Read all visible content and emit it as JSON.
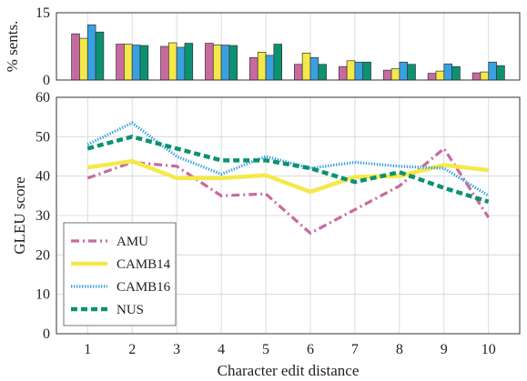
{
  "chart_data": [
    {
      "type": "bar",
      "ylabel": "% sents.",
      "ylim": [
        0,
        15
      ],
      "yticks": [
        0,
        15
      ],
      "categories": [
        "1",
        "2",
        "3",
        "4",
        "5",
        "6",
        "7",
        "8",
        "9",
        "10"
      ],
      "series": [
        {
          "name": "AMU",
          "color": "#c86aa0",
          "values": [
            10.3,
            8.0,
            7.5,
            8.2,
            5.0,
            3.5,
            3.0,
            2.2,
            1.5,
            1.6
          ]
        },
        {
          "name": "CAMB14",
          "color": "#f4e94a",
          "values": [
            9.3,
            8.0,
            8.3,
            7.8,
            6.2,
            6.0,
            4.3,
            2.5,
            2.0,
            1.8
          ]
        },
        {
          "name": "CAMB16",
          "color": "#3aa1e0",
          "values": [
            12.3,
            7.8,
            7.3,
            7.8,
            5.5,
            5.0,
            4.0,
            4.0,
            3.6,
            4.0
          ]
        },
        {
          "name": "NUS",
          "color": "#0c9271",
          "values": [
            10.7,
            7.7,
            8.2,
            7.7,
            8.0,
            3.5,
            4.0,
            3.5,
            3.0,
            3.2
          ]
        }
      ],
      "grid": true
    },
    {
      "type": "line",
      "xlabel": "Character edit distance",
      "ylabel": "GLEU score",
      "x": [
        1,
        2,
        3,
        4,
        5,
        6,
        7,
        8,
        9,
        10
      ],
      "xlim": [
        0.3,
        10.7
      ],
      "ylim": [
        0,
        60
      ],
      "yticks": [
        0,
        10,
        20,
        30,
        40,
        50,
        60
      ],
      "legend_position": "bottom-left",
      "grid": true,
      "series": [
        {
          "name": "AMU",
          "color": "#c86aa0",
          "style": "dashdot",
          "values": [
            39.5,
            43.5,
            42.5,
            35.0,
            35.5,
            25.5,
            31.5,
            37.5,
            47.0,
            29.5
          ]
        },
        {
          "name": "CAMB14",
          "color": "#f4e94a",
          "style": "solid",
          "values": [
            42.2,
            43.8,
            39.5,
            39.5,
            40.2,
            36.0,
            39.8,
            40.0,
            42.8,
            41.5
          ]
        },
        {
          "name": "CAMB16",
          "color": "#3aa1e0",
          "style": "dotted",
          "values": [
            48.0,
            53.5,
            45.0,
            40.5,
            45.0,
            42.0,
            43.5,
            42.5,
            42.0,
            35.0
          ]
        },
        {
          "name": "NUS",
          "color": "#0c9271",
          "style": "dashed",
          "values": [
            47.0,
            50.0,
            47.0,
            44.0,
            44.0,
            42.0,
            38.5,
            41.0,
            37.0,
            33.5
          ]
        }
      ]
    }
  ]
}
